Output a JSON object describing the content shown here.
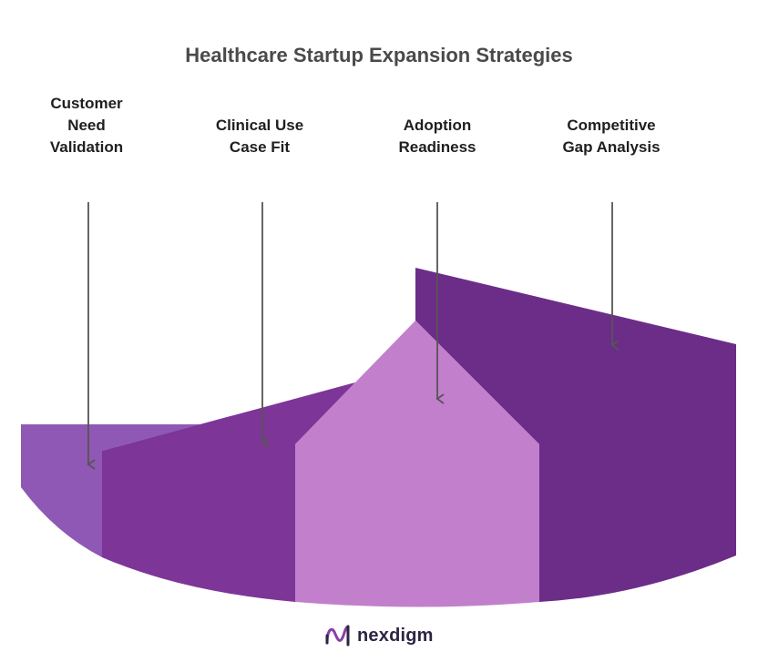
{
  "title": "Healthcare Startup Expansion Strategies",
  "stages": [
    {
      "label": "Customer\nNeed\nValidation",
      "color": "#8e58b4"
    },
    {
      "label": "Clinical Use\nCase Fit",
      "color": "#7e3598"
    },
    {
      "label": "Adoption\nReadiness",
      "color": "#c27fcc"
    },
    {
      "label": "Competitive\nGap Analysis",
      "color": "#6c2d88"
    }
  ],
  "logo": {
    "text": "nexdigm",
    "icon": "nexdigm-logo-icon",
    "color": "#8a3fa8"
  },
  "arrow_color": "#555555"
}
